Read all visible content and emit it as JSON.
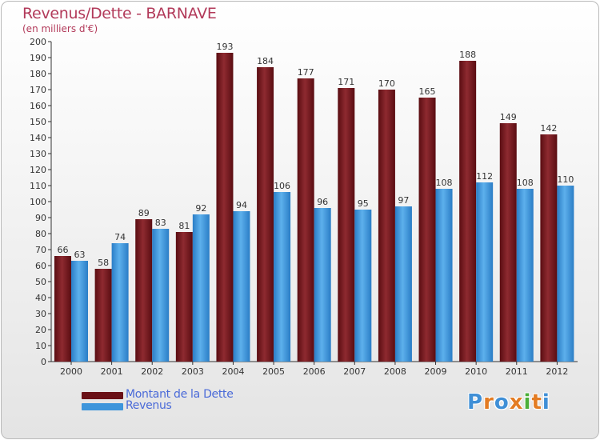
{
  "header": {
    "title": "Revenus/Dette - BARNAVE",
    "subtitle": "(en milliers d'€)"
  },
  "legend": {
    "items": [
      {
        "label": "Montant de la Dette",
        "color": "#7a1a1f"
      },
      {
        "label": "Revenus",
        "color": "#3d95db"
      }
    ]
  },
  "logo": {
    "letters": [
      {
        "ch": "P",
        "color": "#3f8fd6"
      },
      {
        "ch": "r",
        "color": "#e37c23"
      },
      {
        "ch": "o",
        "color": "#3f8fd6"
      },
      {
        "ch": "x",
        "color": "#e37c23"
      },
      {
        "ch": "i",
        "color": "#4caf3a"
      },
      {
        "ch": "t",
        "color": "#e37c23"
      },
      {
        "ch": "i",
        "color": "#3f8fd6"
      }
    ]
  },
  "chart_data": {
    "type": "bar",
    "title": "Revenus/Dette - BARNAVE",
    "subtitle": "(en milliers d'€)",
    "xlabel": "",
    "ylabel": "",
    "ylim": [
      0,
      200
    ],
    "ytick_step": 10,
    "grid": false,
    "legend_position": "bottom-left",
    "categories": [
      "2000",
      "2001",
      "2002",
      "2003",
      "2004",
      "2005",
      "2006",
      "2007",
      "2008",
      "2009",
      "2010",
      "2011",
      "2012"
    ],
    "series": [
      {
        "name": "Montant de la Dette",
        "color": "#7a1a1f",
        "values": [
          66,
          58,
          89,
          81,
          193,
          184,
          177,
          171,
          170,
          165,
          188,
          149,
          142
        ]
      },
      {
        "name": "Revenus",
        "color": "#3d95db",
        "values": [
          63,
          74,
          83,
          92,
          94,
          106,
          96,
          95,
          97,
          108,
          112,
          108,
          110
        ]
      }
    ]
  }
}
